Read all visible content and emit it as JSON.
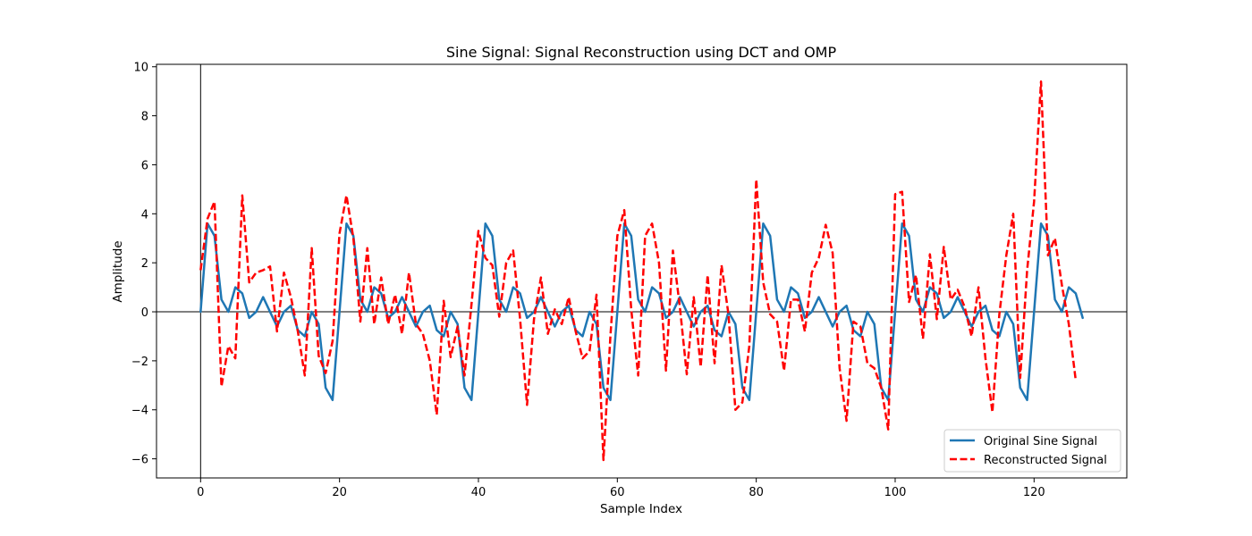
{
  "chart_data": {
    "type": "line",
    "title": "Sine Signal: Signal Reconstruction using DCT and OMP",
    "xlabel": "Sample Index",
    "ylabel": "Amplitude",
    "xlim": [
      -6.35,
      133.35
    ],
    "ylim": [
      -6.78,
      10.1
    ],
    "xticks": [
      0,
      20,
      40,
      60,
      80,
      100,
      120
    ],
    "yticks": [
      -6,
      -4,
      -2,
      0,
      2,
      4,
      6,
      8,
      10
    ],
    "legend_position": "lower-right",
    "reference_lines": [
      "y=0",
      "x=0"
    ],
    "series": [
      {
        "name": "Original Sine Signal",
        "color": "#1f77b4",
        "style": "solid",
        "values": [
          0,
          3.6,
          3.1,
          0.5,
          0,
          1.0,
          0.75,
          -0.25,
          0,
          0.6,
          0,
          -0.6,
          0,
          0.25,
          -0.75,
          -1.0,
          0,
          -0.5,
          -3.1,
          -3.6,
          0,
          3.6,
          3.1,
          0.5,
          0,
          1.0,
          0.75,
          -0.25,
          0,
          0.6,
          0,
          -0.6,
          0,
          0.25,
          -0.75,
          -1.0,
          0,
          -0.5,
          -3.1,
          -3.6,
          0,
          3.6,
          3.1,
          0.5,
          0,
          1.0,
          0.75,
          -0.25,
          0,
          0.6,
          0,
          -0.6,
          0,
          0.25,
          -0.75,
          -1.0,
          0,
          -0.5,
          -3.1,
          -3.6,
          0,
          3.6,
          3.1,
          0.5,
          0,
          1.0,
          0.75,
          -0.25,
          0,
          0.6,
          0,
          -0.6,
          0,
          0.25,
          -0.75,
          -1.0,
          0,
          -0.5,
          -3.1,
          -3.6,
          0,
          3.6,
          3.1,
          0.5,
          0,
          1.0,
          0.75,
          -0.25,
          0,
          0.6,
          0,
          -0.6,
          0,
          0.25,
          -0.75,
          -1.0,
          0,
          -0.5,
          -3.1,
          -3.6,
          0,
          3.6,
          3.1,
          0.5,
          0,
          1.0,
          0.75,
          -0.25,
          0,
          0.6,
          0,
          -0.6,
          0,
          0.25,
          -0.75,
          -1.0,
          0,
          -0.5,
          -3.1,
          -3.6,
          0,
          3.6,
          3.1,
          0.5,
          0,
          1.0,
          0.75,
          -0.25
        ]
      },
      {
        "name": "Reconstructed Signal",
        "color": "#ff0000",
        "style": "dashed",
        "values": [
          1.7,
          3.8,
          4.5,
          -3.05,
          -1.4,
          -1.9,
          4.75,
          1.2,
          1.6,
          1.7,
          1.85,
          -0.8,
          1.6,
          0.6,
          -0.8,
          -2.6,
          2.6,
          -1.8,
          -2.5,
          -1.2,
          3.2,
          4.75,
          3.0,
          -0.4,
          2.6,
          -0.5,
          1.4,
          -0.5,
          0.7,
          -0.9,
          1.6,
          -0.5,
          -0.9,
          -2.0,
          -4.2,
          0.45,
          -1.85,
          -0.6,
          -2.6,
          0.3,
          3.3,
          2.2,
          1.9,
          -0.2,
          2.0,
          2.5,
          -0.3,
          -3.8,
          -0.3,
          1.4,
          -0.9,
          0.1,
          -0.5,
          0.6,
          -0.8,
          -1.9,
          -1.6,
          0.7,
          -6.05,
          -1.0,
          3.1,
          4.15,
          0.1,
          -2.6,
          3.1,
          3.6,
          2.0,
          -2.4,
          2.5,
          0.2,
          -2.55,
          0.6,
          -2.25,
          1.5,
          -2.1,
          1.9,
          -0.1,
          -4.0,
          -3.7,
          -1.4,
          5.4,
          1.2,
          -0.1,
          -0.4,
          -2.4,
          0.5,
          0.5,
          -0.8,
          1.6,
          2.2,
          3.55,
          2.4,
          -2.3,
          -4.45,
          -0.4,
          -0.6,
          -2.1,
          -2.3,
          -3.1,
          -4.8,
          4.8,
          4.9,
          0.4,
          1.5,
          -1.1,
          2.35,
          -0.3,
          2.65,
          0.5,
          0.9,
          0.2,
          -1.0,
          1.0,
          -1.9,
          -4.1,
          -0.1,
          2.3,
          4.0,
          -2.7,
          1.7,
          4.5,
          9.4,
          2.3,
          3.0,
          1.1,
          -0.5,
          -2.8
        ]
      }
    ]
  }
}
